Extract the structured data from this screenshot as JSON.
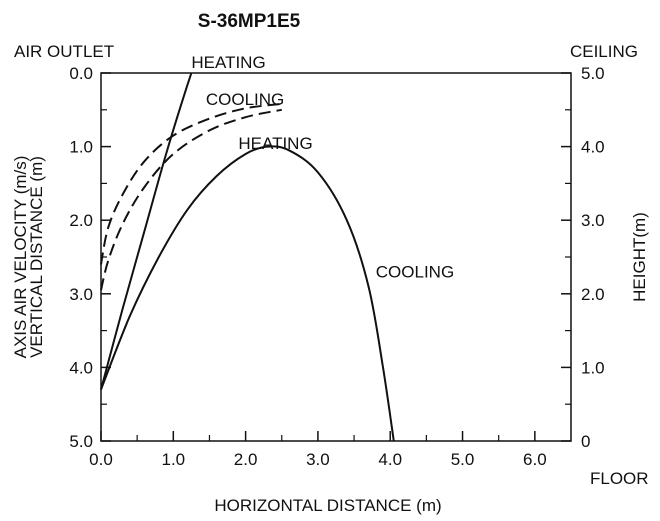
{
  "chart_data": {
    "type": "line",
    "title": "S-36MP1E5",
    "xlabel": "HORIZONTAL DISTANCE (m)",
    "ylabel_left": [
      "AXIS AIR VELOCITY (m/s)",
      "VERTICAL DISTANCE (m)"
    ],
    "ylabel_right": "HEIGHT(m)",
    "xlim": [
      0,
      6.5
    ],
    "ylim_left": [
      0,
      5
    ],
    "ylim_left_inverted": true,
    "ylim_right": [
      0,
      5
    ],
    "x_ticks": [
      {
        "value": 0,
        "label": "0.0"
      },
      {
        "value": 1,
        "label": "1.0"
      },
      {
        "value": 2,
        "label": "2.0"
      },
      {
        "value": 3,
        "label": "3.0"
      },
      {
        "value": 4,
        "label": "4.0"
      },
      {
        "value": 5,
        "label": "5.0"
      },
      {
        "value": 6,
        "label": "6.0"
      }
    ],
    "y_left_ticks": [
      {
        "value": 0,
        "label": "0.0"
      },
      {
        "value": 1,
        "label": "1.0"
      },
      {
        "value": 2,
        "label": "2.0"
      },
      {
        "value": 3,
        "label": "3.0"
      },
      {
        "value": 4,
        "label": "4.0"
      },
      {
        "value": 5,
        "label": "5.0"
      }
    ],
    "y_right_ticks": [
      {
        "value": 5,
        "label": "5.0"
      },
      {
        "value": 4,
        "label": "4.0"
      },
      {
        "value": 3,
        "label": "3.0"
      },
      {
        "value": 2,
        "label": "2.0"
      },
      {
        "value": 1,
        "label": "1.0"
      },
      {
        "value": 0,
        "label": "0"
      }
    ],
    "corner_labels": {
      "top_left": "AIR OUTLET",
      "top_right": "CEILING",
      "bottom_right": "FLOOR"
    },
    "series": [
      {
        "name": "HEATING",
        "style": "solid",
        "points": [
          [
            0,
            4.3
          ],
          [
            0.3,
            3.2
          ],
          [
            0.6,
            2.15
          ],
          [
            0.9,
            1.1
          ],
          [
            1.15,
            0.3
          ],
          [
            1.25,
            0.0
          ]
        ]
      },
      {
        "name": "COOLING",
        "style": "dashed",
        "points": [
          [
            0,
            2.6
          ],
          [
            0.1,
            2.1
          ],
          [
            0.3,
            1.65
          ],
          [
            0.6,
            1.2
          ],
          [
            1.0,
            0.85
          ],
          [
            1.5,
            0.62
          ],
          [
            2.0,
            0.48
          ],
          [
            2.5,
            0.42
          ]
        ]
      },
      {
        "name": "HEATING",
        "style": "dashed",
        "points": [
          [
            0,
            2.95
          ],
          [
            0.1,
            2.55
          ],
          [
            0.3,
            2.05
          ],
          [
            0.6,
            1.55
          ],
          [
            1.0,
            1.1
          ],
          [
            1.5,
            0.78
          ],
          [
            2.0,
            0.6
          ],
          [
            2.5,
            0.5
          ]
        ]
      },
      {
        "name": "COOLING",
        "style": "solid",
        "points": [
          [
            0,
            4.3
          ],
          [
            0.4,
            3.3
          ],
          [
            0.8,
            2.5
          ],
          [
            1.2,
            1.85
          ],
          [
            1.6,
            1.4
          ],
          [
            2.0,
            1.1
          ],
          [
            2.3,
            1.0
          ],
          [
            2.6,
            1.05
          ],
          [
            3.0,
            1.35
          ],
          [
            3.4,
            2.0
          ],
          [
            3.7,
            2.9
          ],
          [
            3.9,
            4.0
          ],
          [
            4.05,
            5.0
          ]
        ]
      }
    ],
    "annotations": [
      {
        "text": "HEATING",
        "x": 1.25,
        "y": -0.15
      },
      {
        "text": "COOLING",
        "x": 1.45,
        "y": 0.35
      },
      {
        "text": "HEATING",
        "x": 1.9,
        "y": 0.95
      },
      {
        "text": "COOLING",
        "x": 3.8,
        "y": 2.7
      }
    ]
  }
}
